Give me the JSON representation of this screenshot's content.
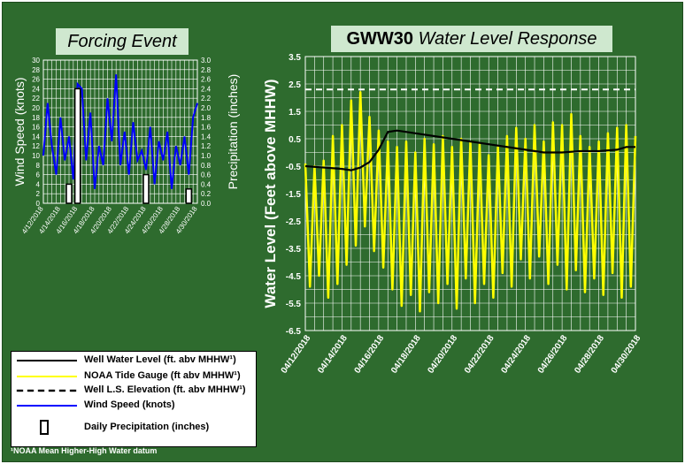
{
  "colors": {
    "background": "#2e6b2e",
    "grid": "#ffffff",
    "tide": "#ffff00",
    "well": "#000000",
    "ls_elevation": "#ffffff",
    "wind": "#0000ff",
    "precip_fill": "#ffffff",
    "precip_stroke": "#000000"
  },
  "left_title": "Forcing Event",
  "right_title_bold": "GWW30",
  "right_title_italic": "Water Level Response",
  "legend": {
    "items": [
      "Well Water Level (ft. abv MHHW¹)",
      "NOAA  Tide Gauge (ft abv MHHW¹)",
      "Well L.S. Elevation (ft. abv MHHW¹)",
      "Wind Speed (knots)",
      "Daily Precipitation (inches)"
    ]
  },
  "footnote": "¹NOAA  Mean Higher-High  Water datum",
  "chart_data": [
    {
      "type": "line",
      "ylabel": "Wind Speed (knots)",
      "y2label": "Precipitation (inches)",
      "ylim": [
        0,
        30
      ],
      "y2lim": [
        0,
        3.0
      ],
      "y_ticks": [
        "0",
        "2",
        "4",
        "6",
        "8",
        "10",
        "12",
        "14",
        "16",
        "18",
        "20",
        "22",
        "24",
        "26",
        "28",
        "30"
      ],
      "y2_ticks": [
        "0.0",
        "0.2",
        "0.4",
        "0.6",
        "0.8",
        "1.0",
        "1.2",
        "1.4",
        "1.6",
        "1.8",
        "2.0",
        "2.2",
        "2.4",
        "2.6",
        "2.8",
        "3.0"
      ],
      "x_tick_labels": [
        "4/12/2018",
        "4/14/2018",
        "4/16/2018",
        "4/18/2018",
        "4/20/2018",
        "4/22/2018",
        "4/24/2018",
        "4/26/2018",
        "4/28/2018",
        "4/30/2018"
      ],
      "grid": true,
      "series": [
        {
          "name": "Wind Speed (knots)",
          "kind": "line",
          "x": [
            "2018-04-12",
            "2018-04-12T12",
            "2018-04-13",
            "2018-04-13T12",
            "2018-04-14",
            "2018-04-14T12",
            "2018-04-15",
            "2018-04-15T12",
            "2018-04-16",
            "2018-04-16T12",
            "2018-04-17",
            "2018-04-17T12",
            "2018-04-18",
            "2018-04-18T12",
            "2018-04-19",
            "2018-04-19T12",
            "2018-04-20",
            "2018-04-20T12",
            "2018-04-21",
            "2018-04-21T12",
            "2018-04-22",
            "2018-04-22T12",
            "2018-04-23",
            "2018-04-23T12",
            "2018-04-24",
            "2018-04-24T12",
            "2018-04-25",
            "2018-04-25T12",
            "2018-04-26",
            "2018-04-26T12",
            "2018-04-27",
            "2018-04-27T12",
            "2018-04-28",
            "2018-04-28T12",
            "2018-04-29",
            "2018-04-29T12",
            "2018-04-30"
          ],
          "values": [
            10,
            21,
            12,
            6,
            18,
            9,
            14,
            5,
            25,
            24,
            9,
            19,
            3,
            12,
            8,
            22,
            13,
            27,
            8,
            15,
            6,
            17,
            9,
            11,
            7,
            16,
            4,
            13,
            9,
            15,
            3,
            12,
            8,
            14,
            6,
            18,
            21
          ]
        },
        {
          "name": "Daily Precipitation (inches)",
          "kind": "bar",
          "x": [
            "2018-04-15",
            "2018-04-16",
            "2018-04-24",
            "2018-04-29"
          ],
          "values": [
            0.4,
            2.4,
            0.6,
            0.3
          ]
        }
      ]
    },
    {
      "type": "line",
      "title": "GWW30 Water Level Response",
      "ylabel": "Water Level (Feet above MHHW)",
      "ylim": [
        -6.5,
        3.5
      ],
      "y_ticks": [
        "3.5",
        "2.5",
        "1.5",
        "0.5",
        "-0.5",
        "-1.5",
        "-2.5",
        "-3.5",
        "-4.5",
        "-5.5",
        "-6.5"
      ],
      "x_tick_labels": [
        "04/12/2018",
        "04/14/2018",
        "04/16/2018",
        "04/18/2018",
        "04/20/2018",
        "04/22/2018",
        "04/24/2018",
        "04/26/2018",
        "04/28/2018",
        "04/30/2018"
      ],
      "grid": true,
      "series": [
        {
          "name": "Well Water Level (ft. abv MHHW¹)",
          "x": [
            "2018-04-12",
            "2018-04-13",
            "2018-04-14",
            "2018-04-14T12",
            "2018-04-15",
            "2018-04-15T12",
            "2018-04-16",
            "2018-04-16T12",
            "2018-04-17",
            "2018-04-18",
            "2018-04-20",
            "2018-04-22",
            "2018-04-24",
            "2018-04-25",
            "2018-04-26",
            "2018-04-27",
            "2018-04-28",
            "2018-04-29",
            "2018-04-29T12",
            "2018-04-30"
          ],
          "values": [
            -0.5,
            -0.55,
            -0.6,
            -0.65,
            -0.55,
            -0.35,
            0.1,
            0.75,
            0.8,
            0.7,
            0.5,
            0.3,
            0.1,
            0.0,
            0.0,
            0.05,
            0.05,
            0.1,
            0.2,
            0.2
          ]
        },
        {
          "name": "NOAA  Tide Gauge (ft abv MHHW¹)",
          "x_start": "2018-04-12",
          "x_step_days": 0.5,
          "peaks": [
            -0.4,
            -0.5,
            -0.3,
            0.6,
            1.0,
            1.9,
            2.2,
            1.3,
            0.8,
            0.4,
            0.2,
            0.4,
            0.0,
            0.5,
            0.3,
            0.6,
            0.2,
            0.5,
            0.4,
            0.3,
            -0.1,
            0.2,
            0.6,
            0.9,
            0.5,
            1.0,
            0.4,
            1.1,
            1.0,
            1.4,
            0.6,
            0.2,
            0.4,
            0.7,
            0.9,
            1.0,
            0.6
          ],
          "troughs": [
            -4.9,
            -4.5,
            -5.3,
            -4.8,
            -4.1,
            -3.4,
            -2.7,
            -3.6,
            -4.2,
            -5.0,
            -5.6,
            -5.2,
            -5.8,
            -5.1,
            -5.5,
            -4.8,
            -5.7,
            -4.6,
            -5.5,
            -4.8,
            -5.3,
            -4.4,
            -4.9,
            -3.9,
            -4.6,
            -3.8,
            -4.8,
            -4.1,
            -5.0,
            -4.3,
            -5.1,
            -4.6,
            -5.2,
            -4.4,
            -5.3,
            -4.9
          ]
        },
        {
          "name": "Well L.S. Elevation (ft. abv MHHW¹)",
          "x": [
            "2018-04-12",
            "2018-04-30"
          ],
          "values": [
            2.3,
            2.3
          ]
        }
      ]
    }
  ]
}
